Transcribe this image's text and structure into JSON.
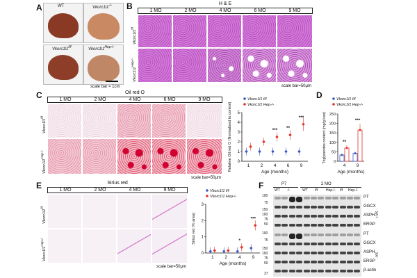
{
  "panels": {
    "A": "A",
    "B": "B",
    "C": "C",
    "D": "D",
    "E": "E",
    "F": "F"
  },
  "panel_a": {
    "labels": {
      "wt": "WT",
      "ko": "Vkorc1l1",
      "ko_sup": "-/-",
      "ff": "Vkorc1l1",
      "ff_sup": "f/f",
      "hep": "Vkorc1l1",
      "hep_sup": "Hep-/-"
    },
    "scale_bar": "scale bar = 1cm"
  },
  "panel_b": {
    "title": "H & E",
    "timepoints": [
      "1 MO",
      "2 MO",
      "4 MO",
      "6 MO",
      "9 MO"
    ],
    "row_ff": "Vkorc1l1",
    "row_ff_sup": "f/f",
    "row_hep": "Vkorc1l1",
    "row_hep_sup": "Hep-/-",
    "scale_bar": "scale bar=50μm"
  },
  "panel_c": {
    "title": "Oil red O",
    "timepoints": [
      "1 MO",
      "2 MO",
      "4 MO",
      "6 MO",
      "9 MO"
    ],
    "row_ff": "Vkorc1l1",
    "row_ff_sup": "f/f",
    "row_hep": "Vkorc1l1",
    "row_hep_sup": "Hep-/-",
    "scale_bar": "scale bar=50μm"
  },
  "panel_e": {
    "title": "Sirius red",
    "timepoints": [
      "1 MO",
      "2 MO",
      "4 MO",
      "9 MO"
    ],
    "row_ff": "Vkorc1l1",
    "row_ff_sup": "f/f",
    "row_hep": "Vkorc1l1",
    "row_hep_sup": "Hep-/-",
    "scale_bar": "scale bar=50μm"
  },
  "panel_f": {
    "header_p7": "P7",
    "header_2mo": "2 MO",
    "lane_groups": [
      "WT",
      "-/-",
      "WT",
      "f/f",
      "Hep-/-",
      "f/f",
      "Hep-/-"
    ],
    "proteins_top": [
      "PT",
      "GGCX",
      "ASPH",
      "ERGP"
    ],
    "proteins_bottom": [
      "PT",
      "GGCX",
      "ASPH",
      "ERGP",
      "β-actin"
    ],
    "side_top": "+VK",
    "side_bottom": "-VK",
    "mw_top": [
      "100",
      "75",
      "150",
      "100",
      "75",
      "50",
      "50"
    ],
    "mw_bottom": [
      "100",
      "75",
      "150",
      "100",
      "75",
      "50",
      "50",
      "37"
    ]
  },
  "chart_data": [
    {
      "type": "scatter",
      "panel": "C",
      "legend": [
        "Vkorc1l1 f/f",
        "Vkorc1l1 Hep-/-"
      ],
      "xlabel": "Age (months)",
      "ylabel": "Relative Oil red O (Normalized to control)",
      "categories": [
        "1",
        "2",
        "4",
        "6",
        "9"
      ],
      "ylim": [
        0,
        5
      ],
      "yticks": [
        "0",
        "1",
        "2",
        "3",
        "4",
        "5"
      ],
      "series": [
        {
          "name": "Vkorc1l1 f/f",
          "color": "#3a57c9",
          "values": [
            1.0,
            1.0,
            1.0,
            1.0,
            1.0
          ]
        },
        {
          "name": "Vkorc1l1 Hep-/-",
          "color": "#e0332a",
          "values": [
            1.5,
            2.0,
            2.5,
            2.7,
            3.8
          ]
        }
      ],
      "significance": [
        "",
        "",
        "***",
        "**",
        "***"
      ]
    },
    {
      "type": "bar",
      "panel": "D",
      "legend": [
        "Vkorc1l1 f/f",
        "Vkorc1l1 Hep-/-"
      ],
      "xlabel": "Age (months)",
      "ylabel": "Triglycerides content (mg/g liver)",
      "categories": [
        "4",
        "9"
      ],
      "ylim": [
        0,
        250
      ],
      "yticks": [
        "0",
        "50",
        "100",
        "150",
        "200",
        "250"
      ],
      "series": [
        {
          "name": "Vkorc1l1 f/f",
          "color": "#3a57c9",
          "values": [
            33,
            42
          ]
        },
        {
          "name": "Vkorc1l1 Hep-/-",
          "color": "#e0332a",
          "values": [
            70,
            165
          ]
        }
      ],
      "significance": [
        "**",
        "***"
      ]
    },
    {
      "type": "scatter",
      "panel": "E",
      "legend": [
        "Vkorc1l1 f/f",
        "Vkorc1l1 Hep-/-"
      ],
      "xlabel": "Age (months)",
      "ylabel": "Sirius red (% area)",
      "categories": [
        "1",
        "2",
        "4",
        "9"
      ],
      "ylim": [
        0,
        3
      ],
      "yticks": [
        "0",
        "1",
        "2",
        "3"
      ],
      "series": [
        {
          "name": "Vkorc1l1 f/f",
          "color": "#3a57c9",
          "values": [
            0.1,
            0.1,
            0.1,
            0.3
          ]
        },
        {
          "name": "Vkorc1l1 Hep-/-",
          "color": "#e0332a",
          "values": [
            0.15,
            0.15,
            0.35,
            1.7
          ]
        }
      ],
      "significance": [
        "",
        "",
        "*",
        "***"
      ]
    }
  ]
}
